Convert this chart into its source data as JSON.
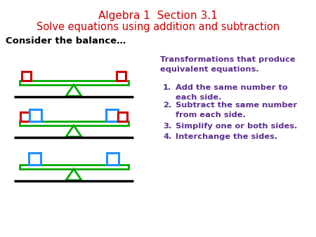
{
  "title_line1": "Algebra 1  Section 3.1",
  "title_line2": "Solve equations using addition and subtraction",
  "title_color": "#cc0000",
  "consider_text": "Consider the balance…",
  "consider_color": "#000000",
  "transform_title": "Transformations that produce\nequivalent equations.",
  "transform_color": "#5b2d8e",
  "items": [
    "Add the same number to\neach side.",
    "Subtract the same number\nfrom each side.",
    "Simplify one or both sides.",
    "Interchange the sides."
  ],
  "item_color": "#5b2d8e",
  "bg_color": "#ffffff",
  "beam_color": "#00aa00",
  "triangle_color": "#00aa00",
  "red_sq_color": "#cc0000",
  "blue_sq_color": "#1e90ff",
  "ground_color": "#000000",
  "title1_fontsize": 11,
  "title2_fontsize": 10.5,
  "consider_fontsize": 9.5,
  "transform_fontsize": 8.2,
  "item_fontsize": 8.2
}
